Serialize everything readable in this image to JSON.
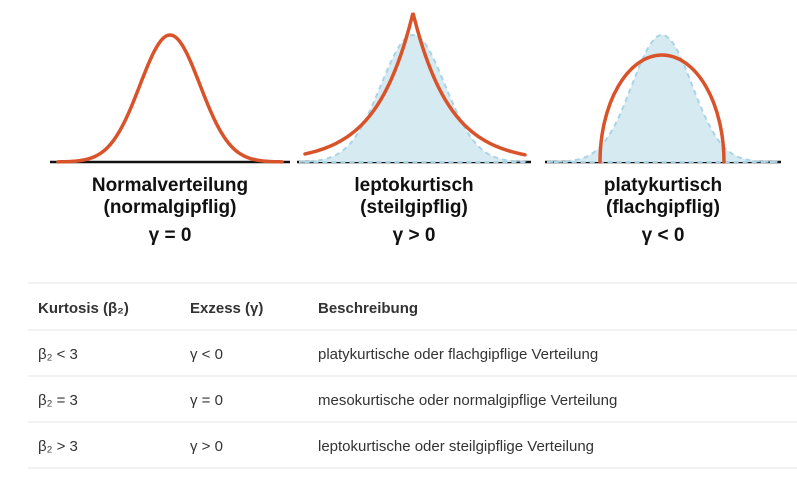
{
  "panels": [
    {
      "title": "Normalverteilung",
      "subtitle": "(normalgipflig)",
      "gamma": "γ = 0"
    },
    {
      "title": "leptokurtisch",
      "subtitle": "(steilgipflig)",
      "gamma": "γ > 0"
    },
    {
      "title": "platykurtisch",
      "subtitle": "(flachgipflig)",
      "gamma": "γ < 0"
    }
  ],
  "table": {
    "header": [
      "Kurtosis (β₂)",
      "Exzess (γ)",
      "Beschreibung"
    ],
    "rows": [
      [
        "β₂ < 3",
        "γ < 0",
        "platykurtische oder flachgipflige Verteilung"
      ],
      [
        "β₂ = 3",
        "γ = 0",
        "mesokurtische oder normalgipflige Verteilung"
      ],
      [
        "β₂ > 3",
        "γ > 0",
        "leptokurtische oder steilgipflige Verteilung"
      ]
    ]
  }
}
